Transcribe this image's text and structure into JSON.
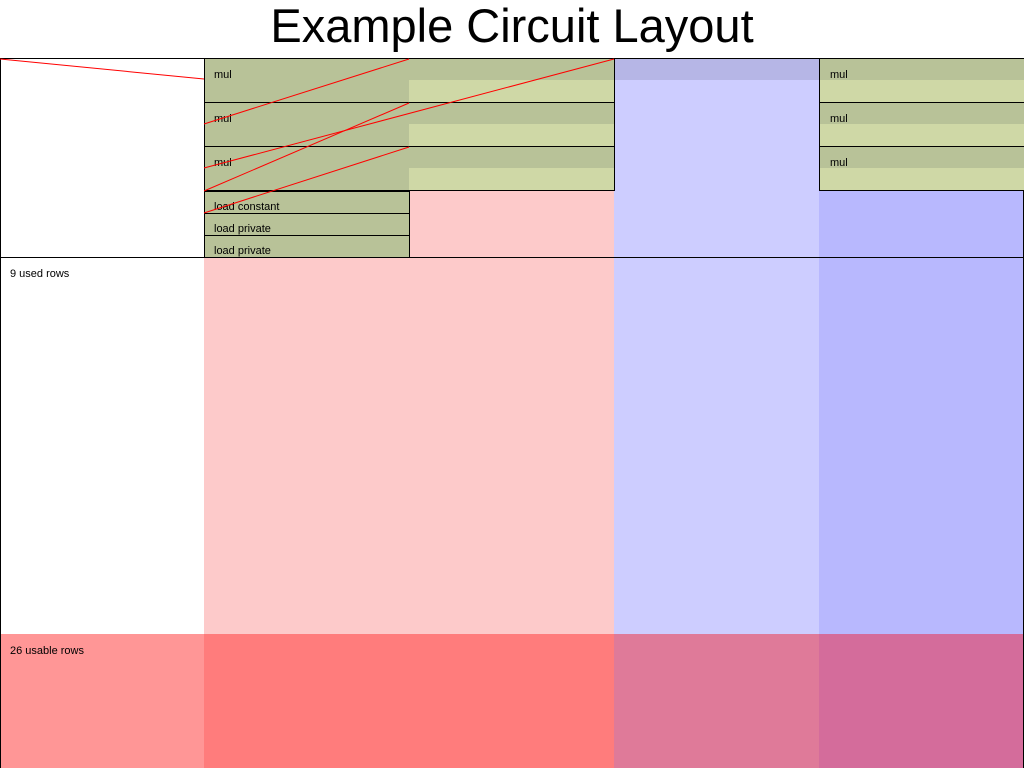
{
  "title": "Example Circuit Layout",
  "colors": {
    "background": "#ffffff",
    "advice_column": "#fdcaca",
    "advice_unusable": "#ff7c7c",
    "selector_column": "#cdcdff",
    "fixed_column": "#b8b8fe",
    "fixed_top": "#b6b6e6",
    "selector_unusable": "#df7a99",
    "fixed_unusable": "#d46c9b",
    "label_column_unusable": "#ff9696",
    "region_dark": "#b8c298",
    "region_light": "#cfd8a6",
    "region_border": "#000000",
    "wire": "#ff0000"
  },
  "rows": {
    "used_label": "9 used rows",
    "usable_label": "26 usable rows"
  },
  "regions": [
    {
      "name": "mul"
    },
    {
      "name": "mul"
    },
    {
      "name": "mul"
    },
    {
      "name": "load constant"
    },
    {
      "name": "load private"
    },
    {
      "name": "load private"
    },
    {
      "name": "mul"
    },
    {
      "name": "mul"
    },
    {
      "name": "mul"
    }
  ]
}
